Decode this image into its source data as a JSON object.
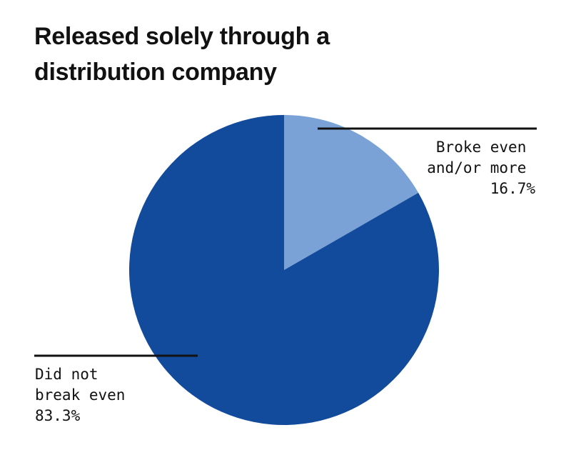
{
  "chart_data": {
    "type": "pie",
    "title_lines": [
      "Released solely through a",
      "distribution company"
    ],
    "slices": [
      {
        "label_lines": [
          "Broke even",
          "and/or more"
        ],
        "value": 16.7,
        "value_label": "16.7%",
        "color": "#7aa2d6"
      },
      {
        "label_lines": [
          "Did not",
          "break even"
        ],
        "value": 83.3,
        "value_label": "83.3%",
        "color": "#124a9c"
      }
    ],
    "leader_line_color": "#111111"
  }
}
